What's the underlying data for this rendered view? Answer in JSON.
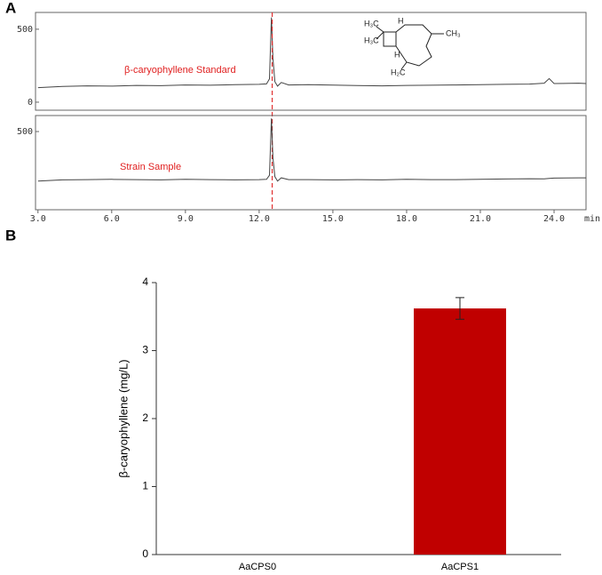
{
  "chart_data": [
    {
      "type": "line",
      "panel": "A",
      "annotation": "β-caryophyllene  Standard",
      "structure_labels": [
        "H₃C",
        "H₃C",
        "H",
        "CH₃",
        "H",
        "H₂C"
      ],
      "x": [
        3,
        4,
        5,
        6,
        7,
        8,
        9,
        10,
        11,
        12,
        12.3,
        12.42,
        12.5,
        12.56,
        12.64,
        12.75,
        12.9,
        13.2,
        14,
        15,
        16,
        17,
        18,
        19,
        20,
        21,
        22,
        23,
        23.6,
        23.8,
        24,
        25,
        25.3
      ],
      "series": [
        {
          "color": "#444444",
          "values": [
            100,
            108,
            112,
            110,
            115,
            113,
            118,
            116,
            120,
            122,
            125,
            160,
            580,
            300,
            140,
            110,
            135,
            118,
            120,
            117,
            114,
            112,
            115,
            116,
            118,
            120,
            122,
            124,
            130,
            162,
            128,
            130,
            128
          ]
        }
      ],
      "reference_x": 12.53,
      "reference_color": "#e03030",
      "xlim": [
        2.9,
        25.3
      ],
      "ylim": [
        -55,
        615
      ],
      "yticks": [
        0,
        500
      ]
    },
    {
      "type": "line",
      "annotation": "Strain Sample",
      "x": [
        3,
        4,
        5,
        6,
        7,
        8,
        9,
        10,
        11,
        12,
        12.3,
        12.42,
        12.5,
        12.56,
        12.64,
        12.75,
        12.9,
        13.2,
        14,
        15,
        16,
        17,
        18,
        19,
        20,
        21,
        22,
        23,
        23.6,
        23.8,
        24,
        25,
        25.3
      ],
      "series": [
        {
          "color": "#444444",
          "values": [
            160,
            168,
            170,
            172,
            170,
            168,
            172,
            170,
            168,
            170,
            172,
            200,
            590,
            320,
            190,
            160,
            182,
            170,
            170,
            168,
            170,
            168,
            172,
            170,
            170,
            172,
            174,
            176,
            175,
            178,
            180,
            182,
            182
          ]
        }
      ],
      "xlim": [
        2.9,
        25.3
      ],
      "ylim": [
        -37,
        610
      ],
      "yticks": [
        500
      ],
      "xticks": [
        {
          "value": 3,
          "label": "3.0"
        },
        {
          "value": 6,
          "label": "6.0"
        },
        {
          "value": 9,
          "label": "9.0"
        },
        {
          "value": 12,
          "label": "12.0"
        },
        {
          "value": 15,
          "label": "15.0"
        },
        {
          "value": 18,
          "label": "18.0"
        },
        {
          "value": 21,
          "label": "21.0"
        },
        {
          "value": 24,
          "label": "24.0"
        }
      ],
      "x_unit": "min"
    },
    {
      "type": "bar",
      "panel": "B",
      "y_label": "β-caryophyllene (mg/L)",
      "categories": [
        "AaCPS0",
        "AaCPS1"
      ],
      "values": [
        0,
        3.62
      ],
      "errors": [
        0,
        0.16
      ],
      "color": "#c00000",
      "ylim": [
        0,
        4
      ],
      "yticks": [
        0,
        1,
        2,
        3,
        4
      ]
    }
  ]
}
